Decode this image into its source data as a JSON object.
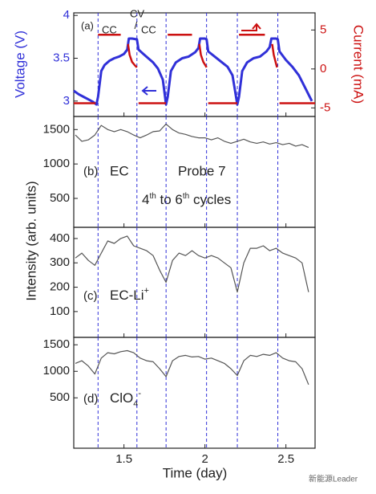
{
  "chart_data": [
    {
      "type": "line",
      "panel_label": "(a)",
      "annotations": [
        "CC",
        "CV",
        "CC"
      ],
      "ylabel": "Voltage (V)",
      "y2label": "Current (mA)",
      "xlim": [
        1.19,
        2.68
      ],
      "xticks": [
        1.5,
        2,
        2.5
      ],
      "ylim": [
        2.82,
        4.03
      ],
      "yticks": [
        3,
        3.5,
        4
      ],
      "y2lim": [
        -6.1,
        7.2
      ],
      "y2ticks": [
        -5,
        0,
        5
      ],
      "vlines": [
        1.34,
        1.58,
        1.76,
        2.01,
        2.2,
        2.45
      ],
      "series": [
        {
          "color": "#3030d8",
          "axis": "y",
          "x": [
            1.19,
            1.22,
            1.25,
            1.28,
            1.31,
            1.33,
            1.34,
            1.36,
            1.38,
            1.41,
            1.44,
            1.47,
            1.5,
            1.52,
            1.53,
            1.55,
            1.58,
            1.59,
            1.62,
            1.65,
            1.68,
            1.71,
            1.74,
            1.76,
            1.77,
            1.79,
            1.82,
            1.86,
            1.9,
            1.94,
            1.96,
            1.97,
            2.0,
            2.01,
            2.02,
            2.06,
            2.1,
            2.14,
            2.17,
            2.2,
            2.21,
            2.23,
            2.26,
            2.3,
            2.34,
            2.38,
            2.4,
            2.41,
            2.44,
            2.45,
            2.46,
            2.5,
            2.54,
            2.58,
            2.62,
            2.66
          ],
          "values": [
            3.12,
            3.08,
            3.05,
            3.02,
            2.99,
            2.96,
            3.05,
            3.35,
            3.42,
            3.47,
            3.5,
            3.52,
            3.55,
            3.6,
            3.73,
            3.73,
            3.72,
            3.6,
            3.55,
            3.5,
            3.45,
            3.38,
            3.25,
            2.96,
            3.05,
            3.35,
            3.45,
            3.5,
            3.52,
            3.57,
            3.62,
            3.73,
            3.73,
            3.72,
            3.58,
            3.52,
            3.46,
            3.4,
            3.3,
            2.96,
            3.05,
            3.35,
            3.45,
            3.5,
            3.52,
            3.58,
            3.63,
            3.73,
            3.73,
            3.72,
            3.58,
            3.48,
            3.4,
            3.3,
            3.15,
            3.0
          ]
        },
        {
          "color": "#cc1111",
          "axis": "y2",
          "x": [
            1.19,
            1.325,
            1.33,
            1.34,
            1.48,
            1.5,
            1.525,
            1.535,
            1.55,
            1.57,
            1.58,
            1.585,
            1.59,
            1.76,
            1.765,
            1.77,
            1.92,
            1.94,
            1.965,
            1.975,
            1.99,
            2.005,
            2.01,
            2.015,
            2.02,
            2.2,
            2.205,
            2.21,
            2.37,
            2.39,
            2.415,
            2.425,
            2.44,
            2.445,
            2.45,
            2.46,
            2.68
          ],
          "values": [
            -4.4,
            -4.4,
            null,
            4.4,
            4.4,
            null,
            3.2,
            1.8,
            0.9,
            0.4,
            0.2,
            null,
            -4.4,
            -4.4,
            null,
            4.4,
            4.4,
            null,
            3.2,
            1.8,
            0.9,
            0.4,
            0.2,
            null,
            -4.4,
            -4.4,
            null,
            4.4,
            4.4,
            null,
            3.2,
            1.8,
            0.6,
            0.2,
            null,
            -4.4,
            -4.4
          ]
        }
      ]
    },
    {
      "type": "line",
      "panel_label": "(b)",
      "label": "EC",
      "probe": "Probe 7",
      "note": [
        "4",
        "th",
        " to 6",
        "th",
        " cycles"
      ],
      "xlim": [
        1.19,
        2.68
      ],
      "xticks": [
        1.5,
        2,
        2.5
      ],
      "ylim": [
        80,
        1690
      ],
      "yticks": [
        500,
        1000,
        1500
      ],
      "vlines": [
        1.34,
        1.58,
        1.76,
        2.01,
        2.2,
        2.45
      ],
      "color": "#555555",
      "x": [
        1.2,
        1.24,
        1.28,
        1.32,
        1.36,
        1.4,
        1.44,
        1.48,
        1.52,
        1.56,
        1.6,
        1.64,
        1.68,
        1.72,
        1.76,
        1.8,
        1.84,
        1.88,
        1.92,
        1.96,
        2.0,
        2.04,
        2.08,
        2.12,
        2.16,
        2.2,
        2.24,
        2.28,
        2.32,
        2.36,
        2.4,
        2.44,
        2.48,
        2.52,
        2.56,
        2.6,
        2.64
      ],
      "values": [
        1420,
        1330,
        1350,
        1420,
        1560,
        1500,
        1470,
        1500,
        1470,
        1420,
        1380,
        1420,
        1470,
        1480,
        1580,
        1500,
        1450,
        1430,
        1400,
        1380,
        1380,
        1350,
        1380,
        1330,
        1300,
        1330,
        1360,
        1320,
        1300,
        1320,
        1290,
        1310,
        1280,
        1300,
        1260,
        1280,
        1240
      ]
    },
    {
      "type": "line",
      "panel_label": "(c)",
      "label": [
        "EC-Li",
        "+"
      ],
      "xlim": [
        1.19,
        2.68
      ],
      "xticks": [
        1.5,
        2,
        2.5
      ],
      "ylim": [
        -6,
        446
      ],
      "yticks": [
        100,
        200,
        300,
        400
      ],
      "vlines": [
        1.34,
        1.58,
        1.76,
        2.01,
        2.2,
        2.45
      ],
      "color": "#555555",
      "x": [
        1.2,
        1.24,
        1.28,
        1.32,
        1.36,
        1.4,
        1.44,
        1.48,
        1.52,
        1.56,
        1.6,
        1.64,
        1.68,
        1.72,
        1.76,
        1.8,
        1.84,
        1.88,
        1.92,
        1.96,
        2.0,
        2.04,
        2.08,
        2.12,
        2.16,
        2.2,
        2.24,
        2.28,
        2.32,
        2.36,
        2.4,
        2.44,
        2.48,
        2.52,
        2.56,
        2.6,
        2.64
      ],
      "values": [
        320,
        340,
        310,
        290,
        340,
        390,
        380,
        400,
        410,
        370,
        360,
        350,
        330,
        270,
        220,
        310,
        340,
        330,
        350,
        330,
        320,
        330,
        320,
        300,
        280,
        180,
        300,
        360,
        360,
        370,
        350,
        360,
        340,
        330,
        320,
        300,
        180
      ]
    },
    {
      "type": "line",
      "panel_label": "(d)",
      "label": [
        "ClO",
        "4",
        "-"
      ],
      "xlabel": "Time (day)",
      "xlim": [
        1.19,
        2.68
      ],
      "xticks": [
        1.5,
        2,
        2.5
      ],
      "ylim": [
        -450,
        1640
      ],
      "yticks": [
        500,
        1000,
        1500
      ],
      "vlines": [
        1.34,
        1.58,
        1.76,
        2.01,
        2.2,
        2.45
      ],
      "color": "#555555",
      "x": [
        1.2,
        1.24,
        1.28,
        1.32,
        1.36,
        1.4,
        1.44,
        1.48,
        1.52,
        1.56,
        1.6,
        1.64,
        1.68,
        1.72,
        1.76,
        1.8,
        1.84,
        1.88,
        1.92,
        1.96,
        2.0,
        2.04,
        2.08,
        2.12,
        2.16,
        2.2,
        2.24,
        2.28,
        2.32,
        2.36,
        2.4,
        2.44,
        2.48,
        2.52,
        2.56,
        2.6,
        2.64
      ],
      "values": [
        1150,
        1200,
        1100,
        950,
        1250,
        1350,
        1330,
        1370,
        1390,
        1350,
        1250,
        1200,
        1180,
        1050,
        900,
        1200,
        1280,
        1300,
        1270,
        1280,
        1230,
        1250,
        1200,
        1150,
        1050,
        920,
        1200,
        1300,
        1280,
        1320,
        1300,
        1350,
        1250,
        1200,
        1180,
        1050,
        750
      ]
    }
  ],
  "ylabel": "Intensity (arb. units)",
  "watermark": "新能源Leader"
}
